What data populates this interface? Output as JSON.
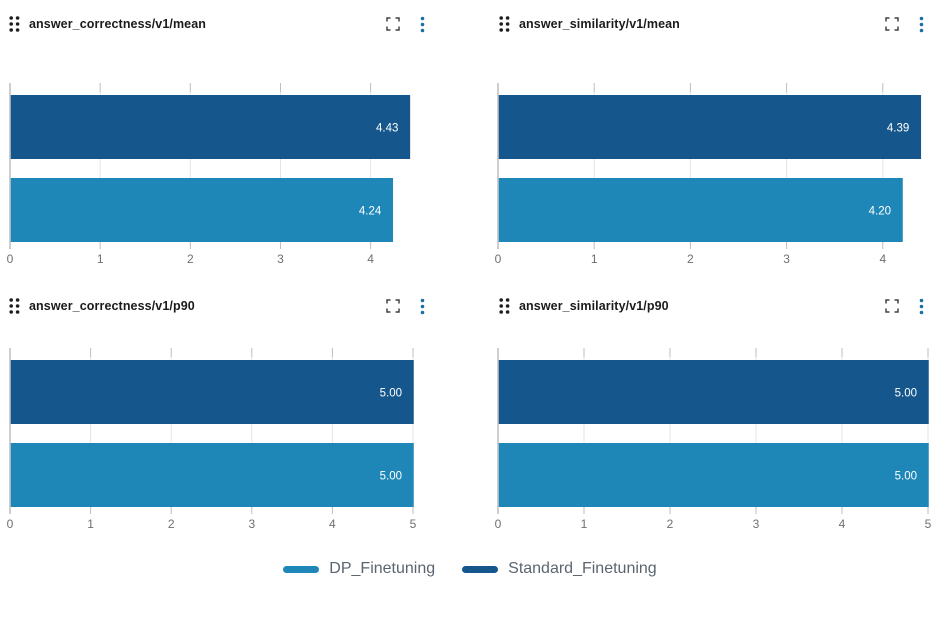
{
  "colors": {
    "dp_finetuning": "#1e87b8",
    "standard_finetuning": "#15568c",
    "gridline": "#e4e4e4",
    "axis_tick": "#bdbdbd",
    "axis_line": "#bdbdbd",
    "axis_label": "#6f6f6f",
    "bar_value_label": "#ffffff",
    "panel_title": "#1b1b1b",
    "kebab_icon": "#1d6fa0",
    "expand_icon": "#3f4346",
    "drag_icon": "#1f1f1f",
    "legend_text": "#5b6570"
  },
  "icons": {
    "drag_handle_icon": "⠿",
    "expand_icon": "⛶",
    "kebab_menu_icon": "⋮"
  },
  "legend": {
    "items": [
      {
        "label": "DP_Finetuning",
        "color_key": "dp_finetuning"
      },
      {
        "label": "Standard_Finetuning",
        "color_key": "standard_finetuning"
      }
    ],
    "position": "bottom-center"
  },
  "chart_data": [
    {
      "type": "bar",
      "orientation": "horizontal",
      "title": "answer_correctness/v1/mean",
      "series": [
        {
          "name": "Standard_Finetuning",
          "value": 4.43,
          "label": "4.43",
          "color_key": "standard_finetuning"
        },
        {
          "name": "DP_Finetuning",
          "value": 4.24,
          "label": "4.24",
          "color_key": "dp_finetuning"
        }
      ],
      "xlim": [
        0,
        4.47
      ],
      "xticks": [
        0,
        1,
        2,
        3,
        4
      ],
      "grid": true
    },
    {
      "type": "bar",
      "orientation": "horizontal",
      "title": "answer_similarity/v1/mean",
      "series": [
        {
          "name": "Standard_Finetuning",
          "value": 4.39,
          "label": "4.39",
          "color_key": "standard_finetuning"
        },
        {
          "name": "DP_Finetuning",
          "value": 4.2,
          "label": "4.20",
          "color_key": "dp_finetuning"
        }
      ],
      "xlim": [
        0,
        4.47
      ],
      "xticks": [
        0,
        1,
        2,
        3,
        4
      ],
      "grid": true
    },
    {
      "type": "bar",
      "orientation": "horizontal",
      "title": "answer_correctness/v1/p90",
      "series": [
        {
          "name": "Standard_Finetuning",
          "value": 5.0,
          "label": "5.00",
          "color_key": "standard_finetuning"
        },
        {
          "name": "DP_Finetuning",
          "value": 5.0,
          "label": "5.00",
          "color_key": "dp_finetuning"
        }
      ],
      "xlim": [
        0,
        5
      ],
      "xticks": [
        0,
        1,
        2,
        3,
        4,
        5
      ],
      "grid": true
    },
    {
      "type": "bar",
      "orientation": "horizontal",
      "title": "answer_similarity/v1/p90",
      "series": [
        {
          "name": "Standard_Finetuning",
          "value": 5.0,
          "label": "5.00",
          "color_key": "standard_finetuning"
        },
        {
          "name": "DP_Finetuning",
          "value": 5.0,
          "label": "5.00",
          "color_key": "dp_finetuning"
        }
      ],
      "xlim": [
        0,
        5
      ],
      "xticks": [
        0,
        1,
        2,
        3,
        4,
        5
      ],
      "grid": true
    }
  ]
}
